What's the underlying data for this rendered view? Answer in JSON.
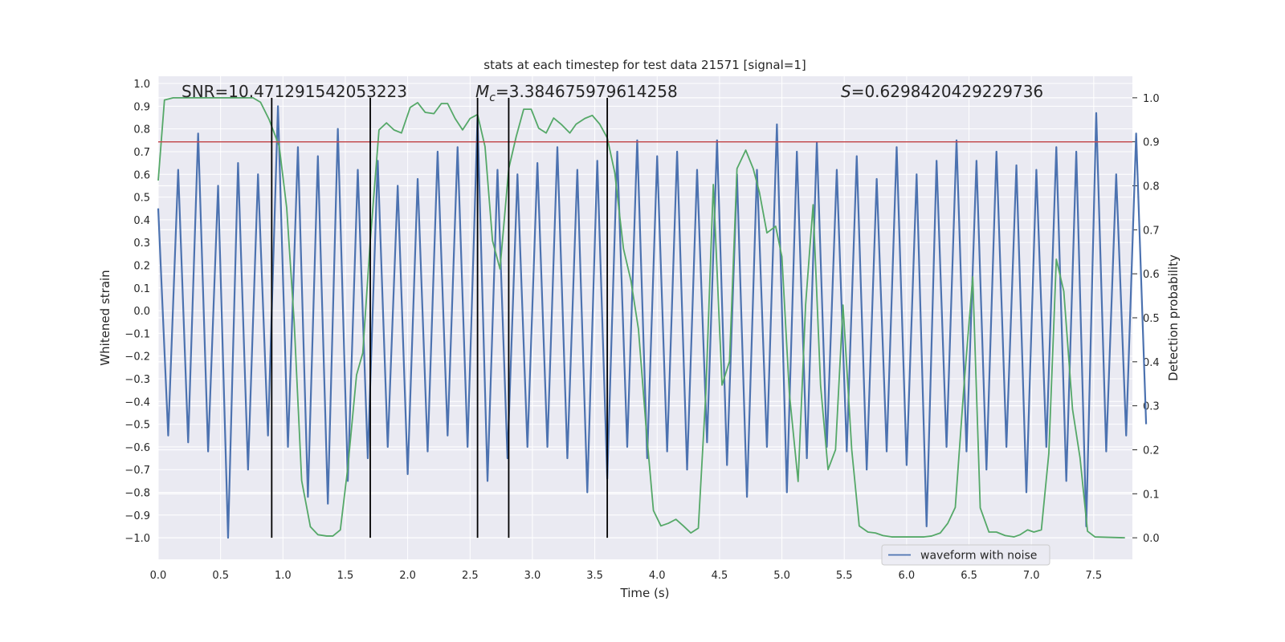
{
  "chart_data": {
    "type": "line",
    "title": "stats at each timestep for test data 21571 [signal=1]",
    "xlabel": "Time (s)",
    "ylabel": "Whitened strain",
    "y2label": "Detection probability",
    "xlim": [
      0,
      7.81
    ],
    "ylim": [
      -1.095,
      1.032
    ],
    "y2lim": [
      -0.049,
      1.049
    ],
    "xticks": [
      {
        "value": 0,
        "label": "0.0"
      },
      {
        "value": 0.5,
        "label": "0.5"
      },
      {
        "value": 1,
        "label": "1.0"
      },
      {
        "value": 1.5,
        "label": "1.5"
      },
      {
        "value": 2,
        "label": "2.0"
      },
      {
        "value": 2.5,
        "label": "2.5"
      },
      {
        "value": 3,
        "label": "3.0"
      },
      {
        "value": 3.5,
        "label": "3.5"
      },
      {
        "value": 4,
        "label": "4.0"
      },
      {
        "value": 4.5,
        "label": "4.5"
      },
      {
        "value": 5,
        "label": "5.0"
      },
      {
        "value": 5.5,
        "label": "5.5"
      },
      {
        "value": 6,
        "label": "6.0"
      },
      {
        "value": 6.5,
        "label": "6.5"
      },
      {
        "value": 7,
        "label": "7.0"
      },
      {
        "value": 7.5,
        "label": "7.5"
      }
    ],
    "yticks": [
      {
        "value": 1,
        "label": "1.0"
      },
      {
        "value": 0.9,
        "label": "0.9"
      },
      {
        "value": 0.8,
        "label": "0.8"
      },
      {
        "value": 0.7,
        "label": "0.7"
      },
      {
        "value": 0.6,
        "label": "0.6"
      },
      {
        "value": 0.5,
        "label": "0.5"
      },
      {
        "value": 0.4,
        "label": "0.4"
      },
      {
        "value": 0.3,
        "label": "0.3"
      },
      {
        "value": 0.2,
        "label": "0.2"
      },
      {
        "value": 0.1,
        "label": "0.1"
      },
      {
        "value": 0,
        "label": "0.0"
      },
      {
        "value": -0.1,
        "label": "−0.1"
      },
      {
        "value": -0.2,
        "label": "−0.2"
      },
      {
        "value": -0.3,
        "label": "−0.3"
      },
      {
        "value": -0.4,
        "label": "−0.4"
      },
      {
        "value": -0.5,
        "label": "−0.5"
      },
      {
        "value": -0.6,
        "label": "−0.6"
      },
      {
        "value": -0.7,
        "label": "−0.7"
      },
      {
        "value": -0.8,
        "label": "−0.8"
      },
      {
        "value": -0.9,
        "label": "−0.9"
      },
      {
        "value": -1,
        "label": "−1.0"
      }
    ],
    "y2ticks": [
      {
        "value": 0,
        "label": "0.0"
      },
      {
        "value": 0.1,
        "label": "0.1"
      },
      {
        "value": 0.2,
        "label": "0.2"
      },
      {
        "value": 0.3,
        "label": "0.3"
      },
      {
        "value": 0.4,
        "label": "0.4"
      },
      {
        "value": 0.5,
        "label": "0.5"
      },
      {
        "value": 0.6,
        "label": "0.6"
      },
      {
        "value": 0.7,
        "label": "0.7"
      },
      {
        "value": 0.8,
        "label": "0.8"
      },
      {
        "value": 0.9,
        "label": "0.9"
      },
      {
        "value": 1,
        "label": "1.0"
      }
    ],
    "grid": true,
    "legend": "lower right",
    "series": [
      {
        "name": "waveform with noise",
        "color": "#4c72b0",
        "x": [
          0,
          0.08,
          0.16,
          0.24,
          0.32,
          0.4,
          0.48,
          0.56,
          0.64,
          0.72,
          0.8,
          0.88,
          0.96,
          1.04,
          1.12,
          1.2,
          1.28,
          1.36,
          1.44,
          1.52,
          1.6,
          1.68,
          1.76,
          1.84,
          1.92,
          2,
          2.08,
          2.16,
          2.24,
          2.32,
          2.4,
          2.48,
          2.56,
          2.64,
          2.72,
          2.8,
          2.88,
          2.96,
          3.04,
          3.12,
          3.2,
          3.28,
          3.36,
          3.44,
          3.52,
          3.6,
          3.68,
          3.76,
          3.84,
          3.92,
          4,
          4.08,
          4.16,
          4.24,
          4.32,
          4.4,
          4.48,
          4.56,
          4.64,
          4.72,
          4.8,
          4.88,
          4.96,
          5.04,
          5.12,
          5.2,
          5.28,
          5.36,
          5.44,
          5.52,
          5.6,
          5.68,
          5.76,
          5.84,
          5.92,
          6,
          6.08,
          6.16,
          6.24,
          6.32,
          6.4,
          6.48,
          6.56,
          6.64,
          6.72,
          6.8,
          6.88,
          6.96,
          7.04,
          7.12,
          7.2,
          7.28,
          7.36,
          7.44,
          7.52,
          7.6,
          7.68,
          7.76,
          7.84,
          7.92
        ],
        "values": [
          0.45,
          -0.55,
          0.62,
          -0.58,
          0.78,
          -0.62,
          0.55,
          -1.0,
          0.65,
          -0.7,
          0.6,
          -0.55,
          0.9,
          -0.6,
          0.72,
          -0.82,
          0.68,
          -0.85,
          0.8,
          -0.75,
          0.62,
          -0.65,
          0.66,
          -0.6,
          0.55,
          -0.72,
          0.58,
          -0.62,
          0.7,
          -0.55,
          0.72,
          -0.6,
          0.85,
          -0.75,
          0.62,
          -0.65,
          0.6,
          -0.6,
          0.65,
          -0.6,
          0.72,
          -0.65,
          0.62,
          -0.8,
          0.66,
          -0.74,
          0.7,
          -0.6,
          0.75,
          -0.65,
          0.68,
          -0.62,
          0.7,
          -0.7,
          0.62,
          -0.58,
          0.75,
          -0.68,
          0.6,
          -0.82,
          0.62,
          -0.6,
          0.82,
          -0.8,
          0.7,
          -0.65,
          0.74,
          -0.6,
          0.62,
          -0.62,
          0.68,
          -0.7,
          0.58,
          -0.62,
          0.72,
          -0.68,
          0.6,
          -0.95,
          0.66,
          -0.6,
          0.75,
          -0.62,
          0.66,
          -0.7,
          0.7,
          -0.6,
          0.64,
          -0.8,
          0.62,
          -0.6,
          0.72,
          -0.75,
          0.7,
          -0.95,
          0.87,
          -0.62,
          0.6,
          -0.55,
          0.78,
          -0.5
        ]
      },
      {
        "color": "#55a868",
        "axis": "y2",
        "x": [
          0,
          0.05,
          0.12,
          0.76,
          0.82,
          0.89,
          0.97,
          1.03,
          1.09,
          1.15,
          1.22,
          1.28,
          1.35,
          1.4,
          1.46,
          1.52,
          1.59,
          1.64,
          1.7,
          1.77,
          1.83,
          1.89,
          1.95,
          2.02,
          2.08,
          2.14,
          2.21,
          2.27,
          2.32,
          2.38,
          2.44,
          2.5,
          2.56,
          2.62,
          2.68,
          2.74,
          2.81,
          2.87,
          2.93,
          2.99,
          3.05,
          3.11,
          3.17,
          3.23,
          3.3,
          3.35,
          3.42,
          3.48,
          3.54,
          3.6,
          3.66,
          3.73,
          3.79,
          3.85,
          3.91,
          3.97,
          4.03,
          4.09,
          4.15,
          4.21,
          4.27,
          4.33,
          4.39,
          4.45,
          4.52,
          4.58,
          4.64,
          4.71,
          4.77,
          4.82,
          4.88,
          4.95,
          5,
          5.06,
          5.13,
          5.19,
          5.25,
          5.31,
          5.37,
          5.43,
          5.49,
          5.56,
          5.62,
          5.69,
          5.75,
          5.81,
          5.88,
          6.01,
          6.14,
          6.2,
          6.27,
          6.33,
          6.39,
          6.46,
          6.53,
          6.59,
          6.66,
          6.72,
          6.79,
          6.86,
          6.91,
          6.97,
          7.02,
          7.08,
          7.14,
          7.2,
          7.26,
          7.33,
          7.39,
          7.45,
          7.51,
          7.75
        ],
        "values": [
          0.812,
          0.995,
          1.0,
          1.0,
          0.99,
          0.95,
          0.89,
          0.75,
          0.49,
          0.13,
          0.025,
          0.007,
          0.004,
          0.004,
          0.018,
          0.16,
          0.37,
          0.42,
          0.675,
          0.927,
          0.943,
          0.927,
          0.92,
          0.978,
          0.989,
          0.967,
          0.964,
          0.987,
          0.987,
          0.953,
          0.927,
          0.953,
          0.962,
          0.889,
          0.675,
          0.611,
          0.839,
          0.912,
          0.974,
          0.974,
          0.931,
          0.92,
          0.954,
          0.94,
          0.92,
          0.94,
          0.953,
          0.96,
          0.94,
          0.909,
          0.83,
          0.657,
          0.584,
          0.474,
          0.255,
          0.062,
          0.027,
          0.033,
          0.042,
          0.027,
          0.011,
          0.022,
          0.328,
          0.803,
          0.347,
          0.401,
          0.839,
          0.881,
          0.839,
          0.785,
          0.693,
          0.708,
          0.639,
          0.328,
          0.128,
          0.529,
          0.757,
          0.347,
          0.155,
          0.2,
          0.529,
          0.2,
          0.027,
          0.013,
          0.011,
          0.005,
          0.002,
          0.002,
          0.002,
          0.004,
          0.011,
          0.033,
          0.069,
          0.347,
          0.593,
          0.068,
          0.013,
          0.013,
          0.005,
          0.002,
          0.007,
          0.018,
          0.013,
          0.018,
          0.192,
          0.633,
          0.56,
          0.292,
          0.182,
          0.015,
          0.002,
          0.0
        ]
      }
    ],
    "threshold": 0.9,
    "threshold_color": "#c44e52",
    "markers": [
      0.91,
      1.7,
      2.56,
      2.81,
      3.6
    ],
    "marker_color": "#000000",
    "annotations": [
      {
        "text": "SNR=10.471291542053223"
      },
      {
        "symbol": "M",
        "subscript": "c",
        "text": "=3.384675979614258"
      },
      {
        "symbol": "S",
        "text": "=0.6298420429229736"
      }
    ]
  }
}
